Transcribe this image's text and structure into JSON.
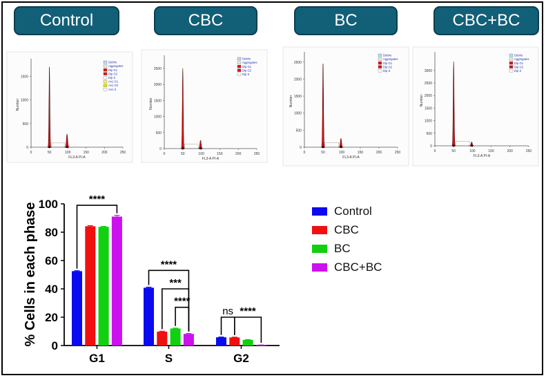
{
  "panels": [
    {
      "label": "Control",
      "histogram": {
        "xlabel": "FL3-A PI-A",
        "ylabel": "Number",
        "xticks": [
          "0",
          "50",
          "100",
          "150",
          "200",
          "250"
        ],
        "yticks": [
          "0",
          "500",
          "1000",
          "1500"
        ],
        "ymax": 1800,
        "g1_peak": 1700,
        "g2_peak": 280,
        "legend": [
          "Debris",
          "Aggregates",
          "Dip G1",
          "Dip G2",
          "Dip S",
          "An1 G1",
          "An1 G2",
          "An1 S"
        ]
      }
    },
    {
      "label": "CBC",
      "histogram": {
        "xlabel": "FL3-A PI-A",
        "ylabel": "Number",
        "xticks": [
          "0",
          "50",
          "100",
          "150",
          "200",
          "250"
        ],
        "yticks": [
          "0",
          "500",
          "1000",
          "1500",
          "2000",
          "2500"
        ],
        "ymax": 2800,
        "g1_peak": 2500,
        "g2_peak": 260,
        "legend": [
          "Debris",
          "Aggregates",
          "Dip G1",
          "Dip G2",
          "Dip S"
        ]
      }
    },
    {
      "label": "BC",
      "histogram": {
        "xlabel": "FL3-A PI-A",
        "ylabel": "Number",
        "xticks": [
          "0",
          "50",
          "100",
          "150",
          "200",
          "250"
        ],
        "yticks": [
          "0",
          "500",
          "1000",
          "1500",
          "2000",
          "2500"
        ],
        "ymax": 2700,
        "g1_peak": 2450,
        "g2_peak": 260,
        "legend": [
          "Debris",
          "Aggregates",
          "Dip G1",
          "Dip G2",
          "Dip S"
        ]
      }
    },
    {
      "label": "CBC+BC",
      "histogram": {
        "xlabel": "FL3-A PI-A",
        "ylabel": "Number",
        "xticks": [
          "0",
          "50",
          "100",
          "150",
          "200",
          "250"
        ],
        "yticks": [
          "0",
          "500",
          "1000",
          "1500",
          "2000",
          "2500",
          "3000"
        ],
        "ymax": 3600,
        "g1_peak": 3350,
        "g2_peak": 160,
        "legend": [
          "Debris",
          "Aggregates",
          "Dip G1",
          "Dip G2",
          "Dip S"
        ]
      }
    }
  ],
  "chart_data": {
    "type": "bar",
    "title": "",
    "xlabel": "",
    "ylabel": "% Cells in each phase",
    "ylim": [
      0,
      100
    ],
    "yticks": [
      0,
      20,
      40,
      60,
      80,
      100
    ],
    "categories": [
      "G1",
      "S",
      "G2"
    ],
    "series": [
      {
        "name": "Control",
        "color": "#0a0af0",
        "values": [
          52.5,
          40.8,
          5.8
        ],
        "errors": [
          0.3,
          0.4,
          0.2
        ]
      },
      {
        "name": "CBC",
        "color": "#f01010",
        "values": [
          84.2,
          9.8,
          5.7
        ],
        "errors": [
          0.4,
          0.3,
          0.2
        ]
      },
      {
        "name": "BC",
        "color": "#10d010",
        "values": [
          83.8,
          12.0,
          4.0
        ],
        "errors": [
          0.3,
          0.3,
          0.2
        ]
      },
      {
        "name": "CBC+BC",
        "color": "#cc10ee",
        "values": [
          91.0,
          8.2,
          0.3
        ],
        "errors": [
          0.9,
          0.3,
          0.1
        ]
      }
    ],
    "legend_position": "right",
    "annotations": [
      {
        "text": "****",
        "from": [
          0,
          0
        ],
        "to": [
          0,
          3
        ],
        "y": 99
      },
      {
        "text": "****",
        "from": [
          1,
          0
        ],
        "to": [
          1,
          3
        ],
        "y": 53
      },
      {
        "text": "***",
        "from": [
          1,
          1
        ],
        "to": [
          1,
          3
        ],
        "y": 40
      },
      {
        "text": "****",
        "from": [
          1,
          2
        ],
        "to": [
          1,
          3
        ],
        "y": 27
      },
      {
        "text": "ns",
        "from": [
          2,
          0
        ],
        "to": [
          2,
          1
        ],
        "y": 20
      },
      {
        "text": "****",
        "from": [
          2,
          1
        ],
        "to": [
          2,
          3
        ],
        "y": 20
      }
    ]
  }
}
